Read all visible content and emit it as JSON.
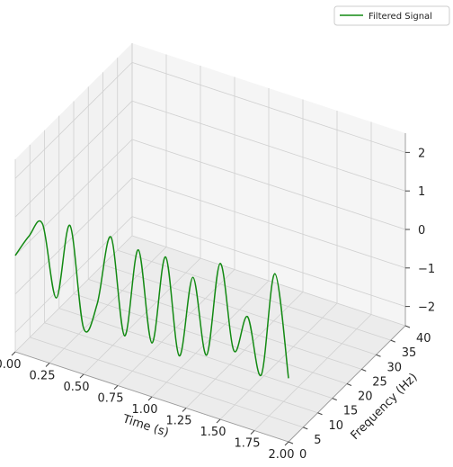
{
  "chart_data": {
    "type": "line",
    "projection": "3d",
    "title": "",
    "xlabel": "Time (s)",
    "ylabel": "Frequency (Hz)",
    "zlabel": "",
    "xlim": [
      0,
      2
    ],
    "ylim": [
      0,
      40
    ],
    "zlim": [
      -2.5,
      2.5
    ],
    "xticks": [
      "0.00",
      "0.25",
      "0.50",
      "0.75",
      "1.00",
      "1.25",
      "1.50",
      "1.75",
      "2.00"
    ],
    "yticks": [
      "0",
      "5",
      "10",
      "15",
      "20",
      "25",
      "30",
      "35",
      "40"
    ],
    "zticks": [
      "2",
      "1",
      "0",
      "−1",
      "−2"
    ],
    "grid": true,
    "legend_position": "top-right",
    "series": [
      {
        "name": "Filtered Signal",
        "color": "#138a13",
        "frequency_level": 0,
        "x": [
          0.0,
          0.1,
          0.2,
          0.3,
          0.4,
          0.5,
          0.6,
          0.7,
          0.8,
          0.9,
          1.0,
          1.1,
          1.2,
          1.3,
          1.4,
          1.5,
          1.6,
          1.7,
          1.8,
          1.9,
          2.0
        ],
        "z": [
          0.0,
          0.62,
          1.05,
          -0.75,
          1.25,
          -1.3,
          -0.55,
          1.3,
          -1.15,
          1.2,
          -1.1,
          1.25,
          -1.2,
          0.95,
          -0.95,
          1.55,
          -0.6,
          0.4,
          -1.0,
          1.75,
          -0.85
        ]
      }
    ]
  }
}
